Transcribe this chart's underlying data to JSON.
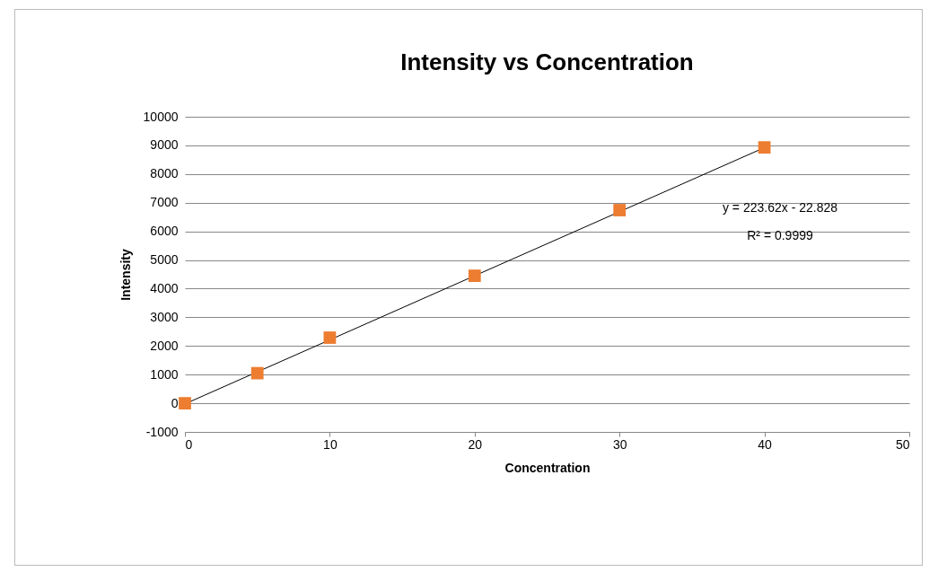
{
  "chart_data": {
    "type": "scatter",
    "title": "Intensity vs Concentration",
    "xlabel": "Concentration",
    "ylabel": "Intensity",
    "x": [
      0,
      5,
      10,
      20,
      30,
      40
    ],
    "series": [
      {
        "type": "line",
        "color": "#000000",
        "x": [
          0,
          40
        ],
        "values": [
          -23,
          8922
        ],
        "marker": "none"
      },
      {
        "color": "#ed7d31",
        "values": [
          0,
          1050,
          2290,
          4450,
          6740,
          8930
        ],
        "marker": "square"
      }
    ],
    "grid": "y",
    "xlim": [
      0,
      50
    ],
    "xticks": [
      0,
      10,
      20,
      30,
      40,
      50
    ],
    "ylim": [
      -1000,
      10000
    ],
    "yticks": [
      -1000,
      0,
      1000,
      2000,
      3000,
      4000,
      5000,
      6000,
      7000,
      8000,
      9000,
      10000
    ],
    "annotations": [
      "y = 223.62x - 22.828",
      "R² = 0.9999"
    ]
  }
}
